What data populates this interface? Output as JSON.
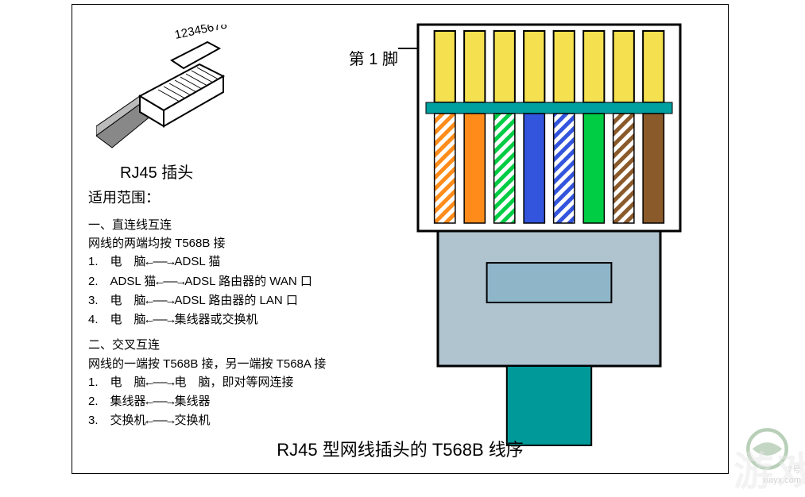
{
  "connector_pin_numbers": "12345678",
  "connector_label": "RJ45 插头",
  "scope_title": "适用范围：",
  "section1": {
    "heading": "一、直连线互连",
    "sub": "网线的两端均按 T568B 接",
    "items": [
      {
        "n": "1.",
        "left": "电　脑",
        "right": "ADSL 猫"
      },
      {
        "n": "2.",
        "left": "ADSL 猫",
        "right": "ADSL 路由器的 WAN 口"
      },
      {
        "n": "3.",
        "left": "电　脑",
        "right": "ADSL 路由器的 LAN 口"
      },
      {
        "n": "4.",
        "left": "电　脑",
        "right": "集线器或交换机"
      }
    ]
  },
  "section2": {
    "heading": "二、交叉互连",
    "sub": "网线的一端按 T568B 接，另一端按 T568A 接",
    "items": [
      {
        "n": "1.",
        "left": "电　脑",
        "right": "电　脑，即对等网连接"
      },
      {
        "n": "2.",
        "left": "集线器",
        "right": "集线器"
      },
      {
        "n": "3.",
        "left": "交换机",
        "right": "交换机"
      }
    ]
  },
  "arrow_text": "←——→",
  "bottom_title": "RJ45 型网线插头的 T568B 线序",
  "pin1_label": "第 1 脚",
  "rj45": {
    "connector_outline": "#000000",
    "body_fill": "#ffffff",
    "boot_fill": "#b0c4d0",
    "boot_inner": "#8fb5c8",
    "cable_fill": "#009999",
    "pin_gold": "#f5e050",
    "crimp_band": "#00a0a0",
    "wire_colors": [
      {
        "solid": "#ff8c1a",
        "stripe": true,
        "stripe_color": "#ffffff"
      },
      {
        "solid": "#ff8c1a",
        "stripe": false,
        "stripe_color": "#ffffff"
      },
      {
        "solid": "#00cc44",
        "stripe": true,
        "stripe_color": "#ffffff"
      },
      {
        "solid": "#3355dd",
        "stripe": false,
        "stripe_color": "#ffffff"
      },
      {
        "solid": "#3355dd",
        "stripe": true,
        "stripe_color": "#ffffff"
      },
      {
        "solid": "#00cc44",
        "stripe": false,
        "stripe_color": "#ffffff"
      },
      {
        "solid": "#8b5a2b",
        "stripe": true,
        "stripe_color": "#ffffff"
      },
      {
        "solid": "#8b5a2b",
        "stripe": false,
        "stripe_color": "#ffffff"
      }
    ]
  },
  "watermark_num": "7号",
  "watermark_big": "游戏",
  "watermark_url": "xiayx.com"
}
